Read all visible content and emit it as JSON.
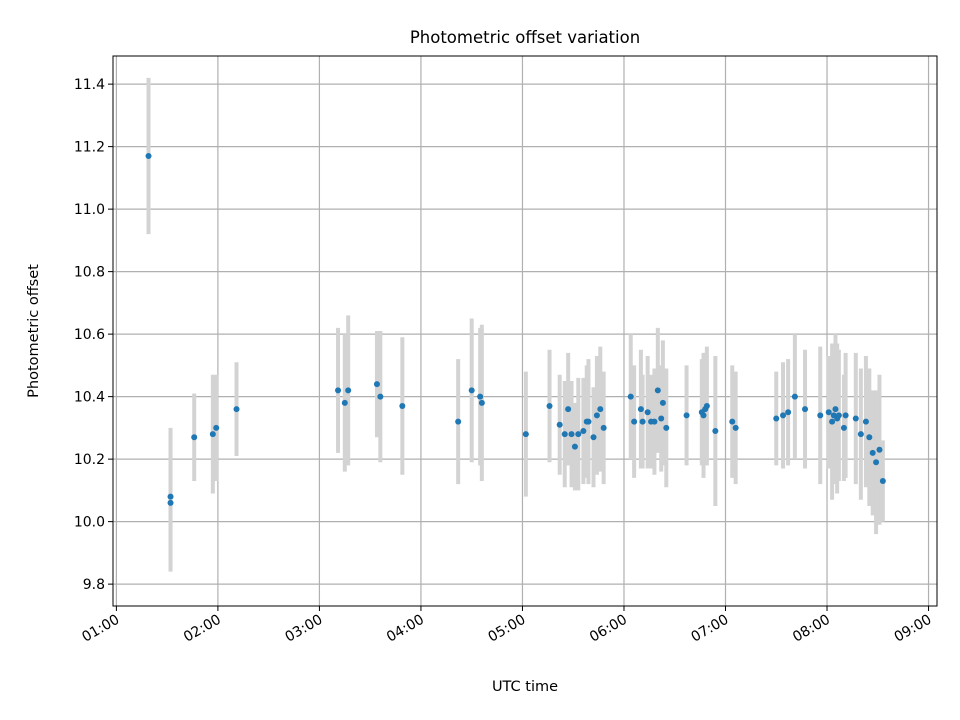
{
  "chart_data": {
    "type": "scatter",
    "title": "Photometric offset variation",
    "xlabel": "UTC time",
    "ylabel": "Photometric offset",
    "xlim": [
      "00:58",
      "09:05"
    ],
    "ylim": [
      9.73,
      11.49
    ],
    "x_ticks": [
      "01:00",
      "02:00",
      "03:00",
      "04:00",
      "05:00",
      "06:00",
      "07:00",
      "08:00",
      "09:00"
    ],
    "y_ticks": [
      9.8,
      10.0,
      10.2,
      10.4,
      10.6,
      10.8,
      11.0,
      11.2,
      11.4
    ],
    "y_tick_labels": [
      "9.8",
      "10.0",
      "10.2",
      "10.4",
      "10.6",
      "10.8",
      "11.0",
      "11.2",
      "11.4"
    ],
    "grid": true,
    "legend": "none",
    "colors": {
      "marker": "#1f77b4",
      "errorbar": "#d3d3d3",
      "grid": "#b0b0b0"
    },
    "series": [
      {
        "x": [
          "01:19",
          "01:32",
          "01:32",
          "01:46",
          "01:57",
          "01:59",
          "02:11",
          "03:11",
          "03:15",
          "03:17",
          "03:34",
          "03:36",
          "03:49",
          "04:22",
          "04:30",
          "04:35",
          "04:36",
          "05:02",
          "05:16",
          "05:22",
          "05:25",
          "05:27",
          "05:29",
          "05:31",
          "05:33",
          "05:36",
          "05:38",
          "05:39",
          "05:42",
          "05:44",
          "05:46",
          "05:48",
          "06:04",
          "06:06",
          "06:10",
          "06:11",
          "06:14",
          "06:16",
          "06:18",
          "06:20",
          "06:22",
          "06:23",
          "06:25",
          "06:37",
          "06:46",
          "06:47",
          "06:48",
          "06:49",
          "06:54",
          "07:04",
          "07:06",
          "07:30",
          "07:34",
          "07:37",
          "07:41",
          "07:47",
          "07:56",
          "08:01",
          "08:03",
          "08:04",
          "08:05",
          "08:06",
          "08:07",
          "08:10",
          "08:11",
          "08:17",
          "08:20",
          "08:23",
          "08:25",
          "08:27",
          "08:29",
          "08:31",
          "08:33"
        ],
        "y": [
          11.17,
          10.08,
          10.06,
          10.27,
          10.28,
          10.3,
          10.36,
          10.42,
          10.38,
          10.42,
          10.44,
          10.4,
          10.37,
          10.32,
          10.42,
          10.4,
          10.38,
          10.28,
          10.37,
          10.31,
          10.28,
          10.36,
          10.28,
          10.24,
          10.28,
          10.29,
          10.32,
          10.32,
          10.27,
          10.34,
          10.36,
          10.3,
          10.4,
          10.32,
          10.36,
          10.32,
          10.35,
          10.32,
          10.32,
          10.42,
          10.33,
          10.38,
          10.3,
          10.34,
          10.35,
          10.34,
          10.36,
          10.37,
          10.29,
          10.32,
          10.3,
          10.33,
          10.34,
          10.35,
          10.4,
          10.36,
          10.34,
          10.35,
          10.32,
          10.34,
          10.36,
          10.33,
          10.34,
          10.3,
          10.34,
          10.33,
          10.28,
          10.32,
          10.27,
          10.22,
          10.19,
          10.23,
          10.13
        ],
        "yerr": [
          0.25,
          0.22,
          0.22,
          0.14,
          0.19,
          0.17,
          0.15,
          0.2,
          0.22,
          0.24,
          0.17,
          0.21,
          0.22,
          0.2,
          0.23,
          0.22,
          0.25,
          0.2,
          0.18,
          0.16,
          0.17,
          0.18,
          0.17,
          0.14,
          0.18,
          0.17,
          0.18,
          0.2,
          0.16,
          0.19,
          0.2,
          0.18,
          0.2,
          0.18,
          0.19,
          0.15,
          0.18,
          0.15,
          0.17,
          0.2,
          0.17,
          0.2,
          0.19,
          0.16,
          0.17,
          0.2,
          0.18,
          0.19,
          0.24,
          0.18,
          0.18,
          0.15,
          0.17,
          0.17,
          0.2,
          0.19,
          0.22,
          0.18,
          0.25,
          0.2,
          0.24,
          0.24,
          0.21,
          0.17,
          0.2,
          0.21,
          0.21,
          0.21,
          0.22,
          0.2,
          0.23,
          0.24,
          0.13
        ]
      }
    ]
  }
}
